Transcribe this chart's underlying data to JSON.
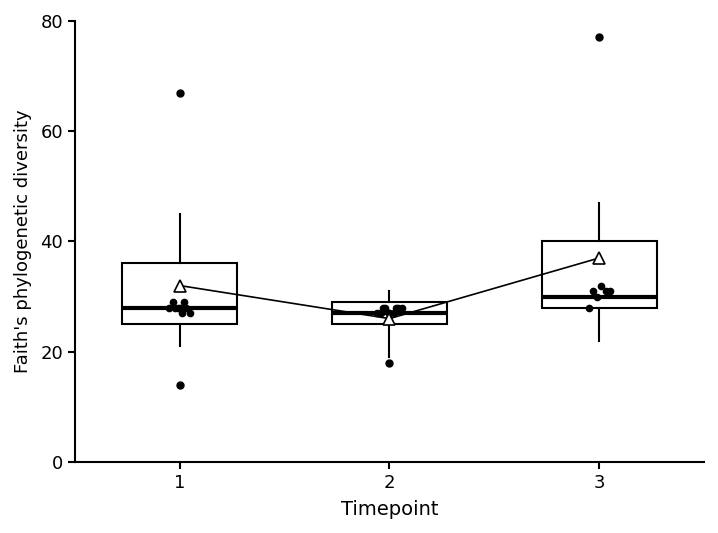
{
  "timepoints": [
    1,
    2,
    3
  ],
  "box_data": {
    "1": {
      "median": 28,
      "q1": 25,
      "q3": 36,
      "whisker_low": 21,
      "whisker_high": 45,
      "outliers": [
        14,
        67
      ],
      "mean": 32,
      "jitter_x": [
        -0.05,
        -0.02,
        0.01,
        0.03,
        -0.03,
        0.05,
        -0.01,
        0.02,
        0.0
      ],
      "jitter_y": [
        28,
        28,
        27,
        28,
        29,
        27,
        28,
        29,
        28
      ]
    },
    "2": {
      "median": 27,
      "q1": 25,
      "q3": 29,
      "whisker_low": 19,
      "whisker_high": 31,
      "outliers": [
        18
      ],
      "mean": 26,
      "jitter_x": [
        -0.06,
        -0.03,
        0.0,
        0.03,
        0.06,
        -0.04,
        0.04,
        -0.02,
        0.02,
        0.0
      ],
      "jitter_y": [
        27,
        28,
        27,
        28,
        28,
        27,
        28,
        28,
        27,
        27
      ]
    },
    "3": {
      "median": 30,
      "q1": 28,
      "q3": 40,
      "whisker_low": 22,
      "whisker_high": 47,
      "outliers": [
        77
      ],
      "mean": 37,
      "jitter_x": [
        -0.03,
        0.03,
        -0.01,
        0.01,
        0.05,
        -0.05
      ],
      "jitter_y": [
        31,
        31,
        30,
        32,
        31,
        28
      ]
    }
  },
  "ylim": [
    0,
    80
  ],
  "yticks": [
    0,
    20,
    40,
    60,
    80
  ],
  "xlabel": "Timepoint",
  "ylabel": "Faith's phylogenetic diversity",
  "box_width": 0.55,
  "figsize": [
    7.18,
    5.33
  ],
  "dpi": 100
}
